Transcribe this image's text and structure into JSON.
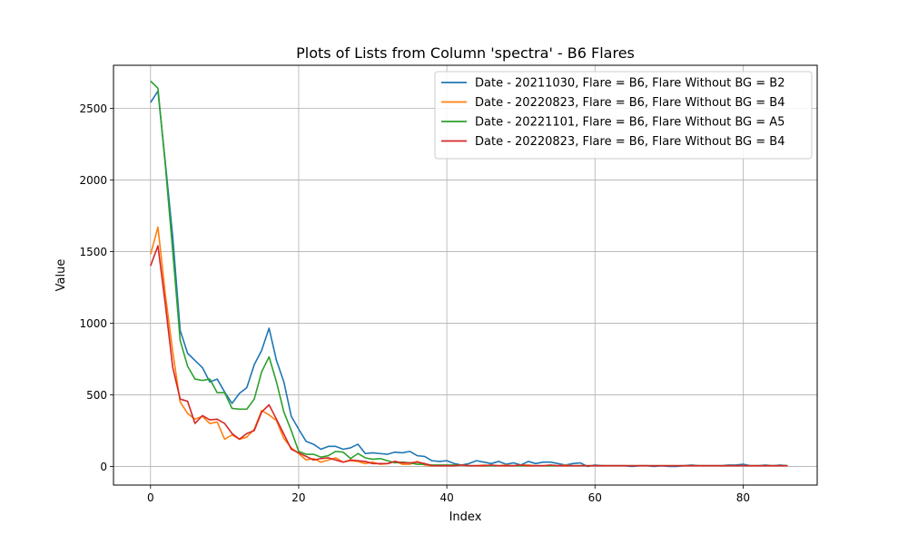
{
  "chart_data": {
    "type": "line",
    "title": "Plots of Lists from Column 'spectra' - B6 Flares",
    "xlabel": "Index",
    "ylabel": "Value",
    "xlim": [
      -5,
      90
    ],
    "ylim": [
      -130,
      2800
    ],
    "xticks": [
      0,
      20,
      40,
      60,
      80
    ],
    "yticks": [
      0,
      500,
      1000,
      1500,
      2000,
      2500
    ],
    "grid": true,
    "legend_position": "top-right",
    "series": [
      {
        "name": "Date - 20211030, Flare = B6, Flare Without BG = B2",
        "color": "#1f77b4",
        "values": [
          2540,
          2620,
          2120,
          1600,
          950,
          790,
          740,
          690,
          590,
          610,
          520,
          440,
          510,
          550,
          710,
          810,
          965,
          740,
          590,
          350,
          260,
          175,
          155,
          120,
          140,
          140,
          120,
          130,
          155,
          90,
          95,
          90,
          85,
          100,
          95,
          105,
          75,
          70,
          40,
          35,
          40,
          20,
          10,
          20,
          40,
          30,
          20,
          35,
          15,
          25,
          10,
          35,
          20,
          30,
          30,
          20,
          10,
          20,
          25,
          0,
          10,
          5,
          5,
          5,
          5,
          0,
          5,
          5,
          0,
          5,
          0,
          0,
          5,
          10,
          5,
          5,
          5,
          5,
          10,
          10,
          15,
          5,
          5,
          10,
          5,
          10,
          5
        ]
      },
      {
        "name": "Date - 20220823, Flare = B6, Flare Without BG = B4",
        "color": "#ff7f0e",
        "values": [
          1480,
          1670,
          1200,
          800,
          450,
          370,
          330,
          350,
          300,
          310,
          190,
          220,
          190,
          205,
          260,
          390,
          360,
          320,
          195,
          130,
          90,
          45,
          55,
          30,
          45,
          60,
          30,
          40,
          35,
          20,
          30,
          15,
          20,
          35,
          15,
          15,
          35,
          10,
          5,
          5,
          5,
          5,
          10,
          5,
          5,
          10,
          5,
          5,
          10,
          5,
          10,
          10,
          5,
          5,
          5,
          5,
          10,
          5,
          5,
          5,
          5,
          5,
          5,
          5,
          5,
          5,
          5,
          5,
          5,
          5,
          5,
          5,
          5,
          5,
          5,
          5,
          5,
          5,
          5,
          5,
          5,
          5,
          5,
          5,
          5,
          5,
          5
        ]
      },
      {
        "name": "Date - 20221101, Flare = B6, Flare Without BG = A5",
        "color": "#2ca02c",
        "values": [
          2690,
          2640,
          2100,
          1500,
          880,
          700,
          610,
          600,
          610,
          515,
          515,
          405,
          400,
          400,
          470,
          660,
          765,
          590,
          380,
          250,
          105,
          85,
          85,
          65,
          75,
          105,
          100,
          55,
          90,
          60,
          50,
          55,
          40,
          25,
          30,
          25,
          15,
          15,
          10,
          10,
          10,
          10,
          10,
          5,
          5,
          5,
          5,
          5,
          5,
          5,
          5,
          5,
          5,
          5,
          5,
          5,
          5,
          5,
          5,
          5,
          5,
          5,
          5,
          5,
          5,
          5,
          5,
          5,
          5,
          5,
          5,
          5,
          5,
          5,
          5,
          5,
          5,
          5,
          5,
          5,
          5,
          5,
          5,
          5,
          5,
          5,
          5
        ]
      },
      {
        "name": "Date - 20220823, Flare = B6, Flare Without BG = B4",
        "color": "#d62728",
        "values": [
          1400,
          1540,
          1130,
          690,
          470,
          455,
          300,
          355,
          325,
          330,
          300,
          230,
          190,
          230,
          250,
          380,
          430,
          330,
          225,
          120,
          95,
          70,
          45,
          55,
          60,
          45,
          30,
          45,
          40,
          35,
          20,
          20,
          20,
          35,
          25,
          25,
          30,
          20,
          5,
          5,
          5,
          5,
          10,
          5,
          5,
          5,
          10,
          5,
          5,
          5,
          10,
          5,
          5,
          5,
          10,
          5,
          5,
          5,
          5,
          5,
          5,
          5,
          5,
          5,
          5,
          5,
          5,
          5,
          5,
          5,
          5,
          5,
          5,
          5,
          5,
          5,
          5,
          5,
          5,
          5,
          5,
          5,
          5,
          5,
          5,
          5,
          5
        ]
      }
    ]
  }
}
